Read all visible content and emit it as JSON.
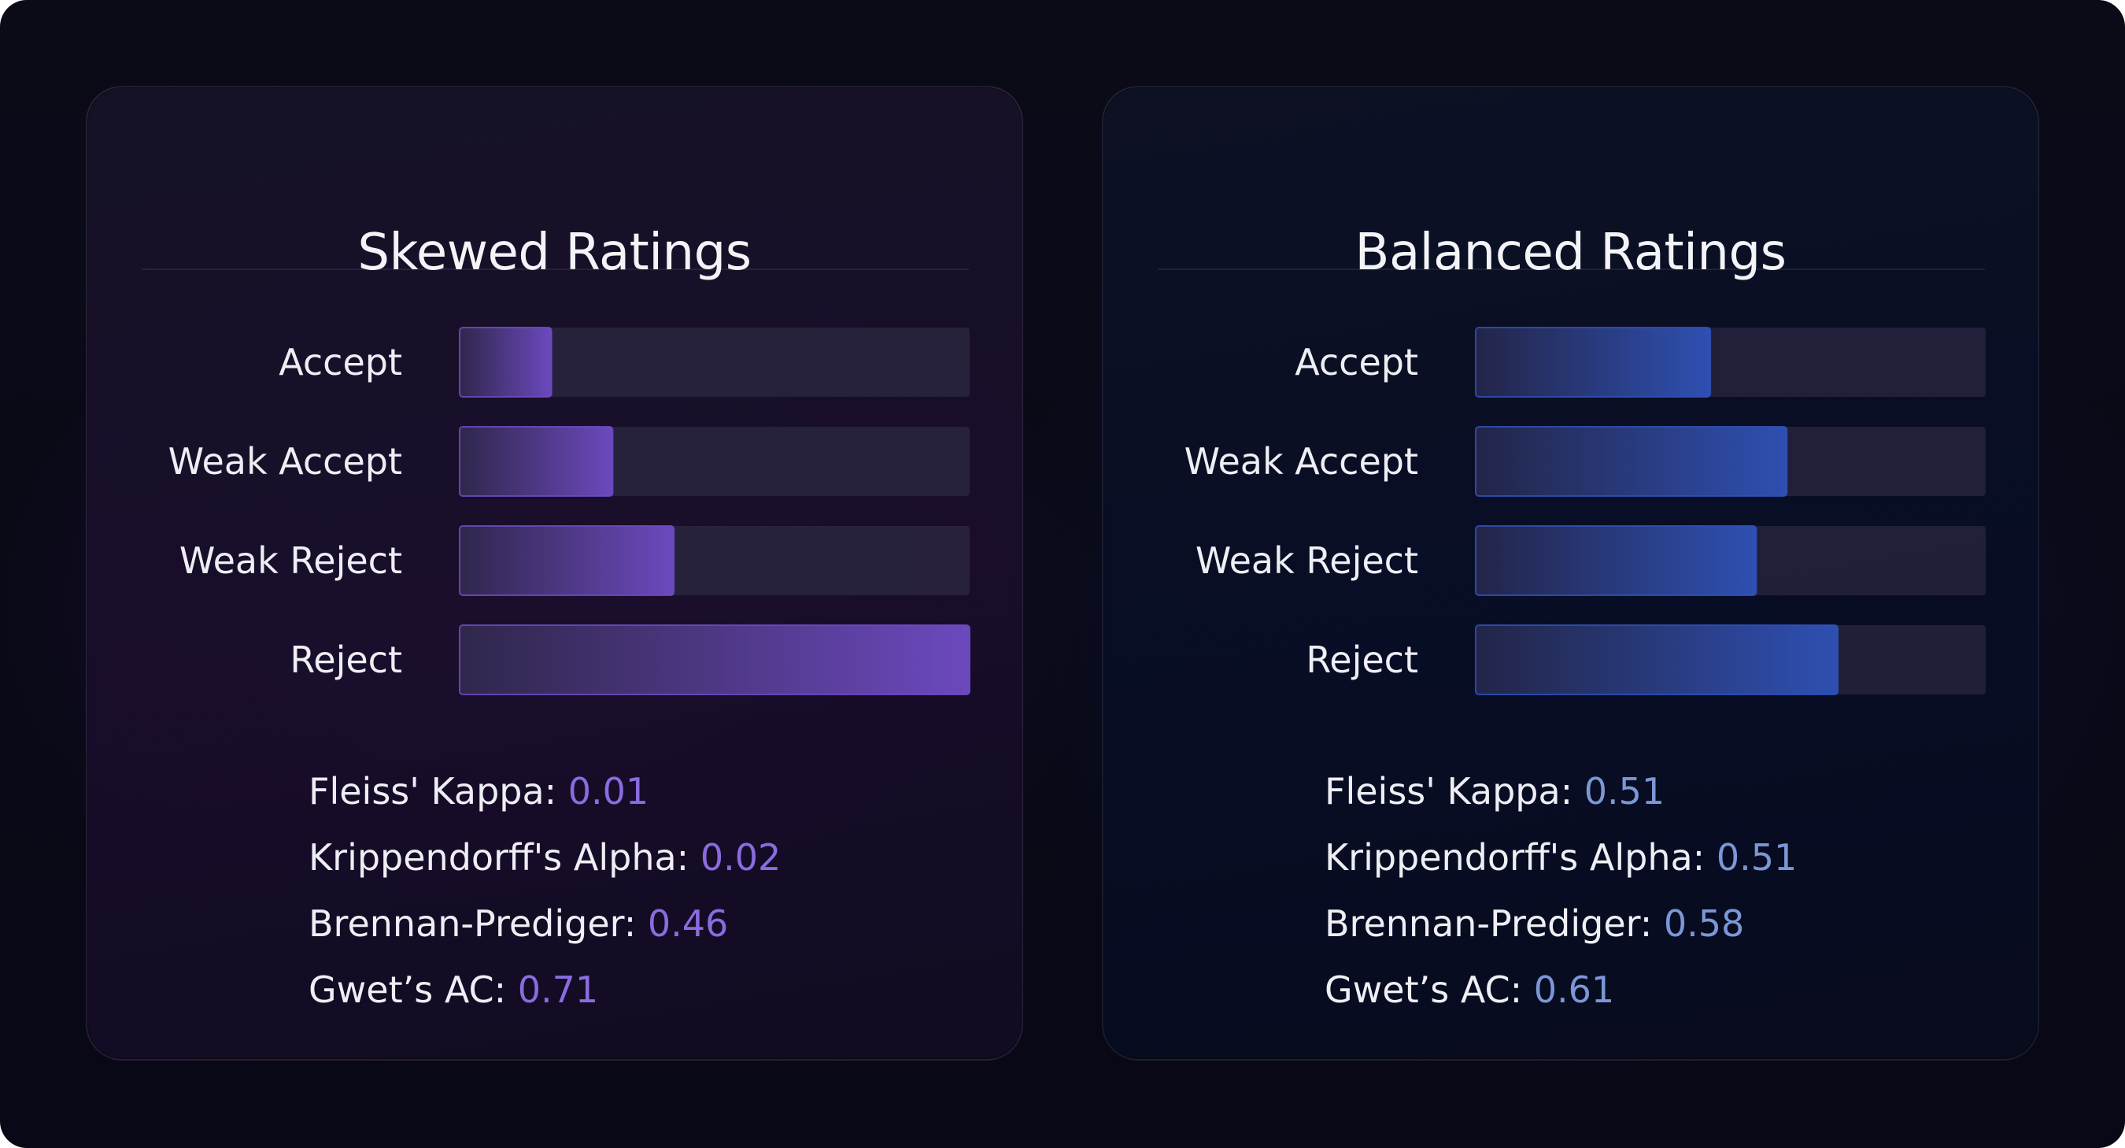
{
  "colors": {
    "skewed_accent": "#6f4bc4",
    "balanced_accent": "#2f52b8",
    "skewed_value_text": "#8a6ce0",
    "balanced_value_text": "#7b97d6",
    "track": "#2a2640"
  },
  "chart_data": [
    {
      "type": "bar",
      "orientation": "horizontal",
      "title": "Skewed Ratings",
      "categories": [
        "Accept",
        "Weak Accept",
        "Weak Reject",
        "Reject"
      ],
      "values": [
        0.18,
        0.3,
        0.42,
        1.0
      ],
      "xlim": [
        0,
        1
      ],
      "grid": false,
      "metrics": [
        {
          "label": "Fleiss' Kappa: ",
          "value": "0.01"
        },
        {
          "label": "Krippendorff's Alpha: ",
          "value": "0.02"
        },
        {
          "label": "Brennan-Prediger: ",
          "value": "0.46"
        },
        {
          "label": "Gwet’s AC: ",
          "value": "0.71"
        }
      ]
    },
    {
      "type": "bar",
      "orientation": "horizontal",
      "title": "Balanced Ratings",
      "categories": [
        "Accept",
        "Weak Accept",
        "Weak Reject",
        "Reject"
      ],
      "values": [
        0.46,
        0.61,
        0.55,
        0.71
      ],
      "xlim": [
        0,
        1
      ],
      "grid": false,
      "metrics": [
        {
          "label": "Fleiss' Kappa: ",
          "value": "0.51"
        },
        {
          "label": "Krippendorff's Alpha: ",
          "value": "0.51"
        },
        {
          "label": "Brennan-Prediger: ",
          "value": "0.58"
        },
        {
          "label": "Gwet’s AC: ",
          "value": "0.61"
        }
      ]
    }
  ]
}
